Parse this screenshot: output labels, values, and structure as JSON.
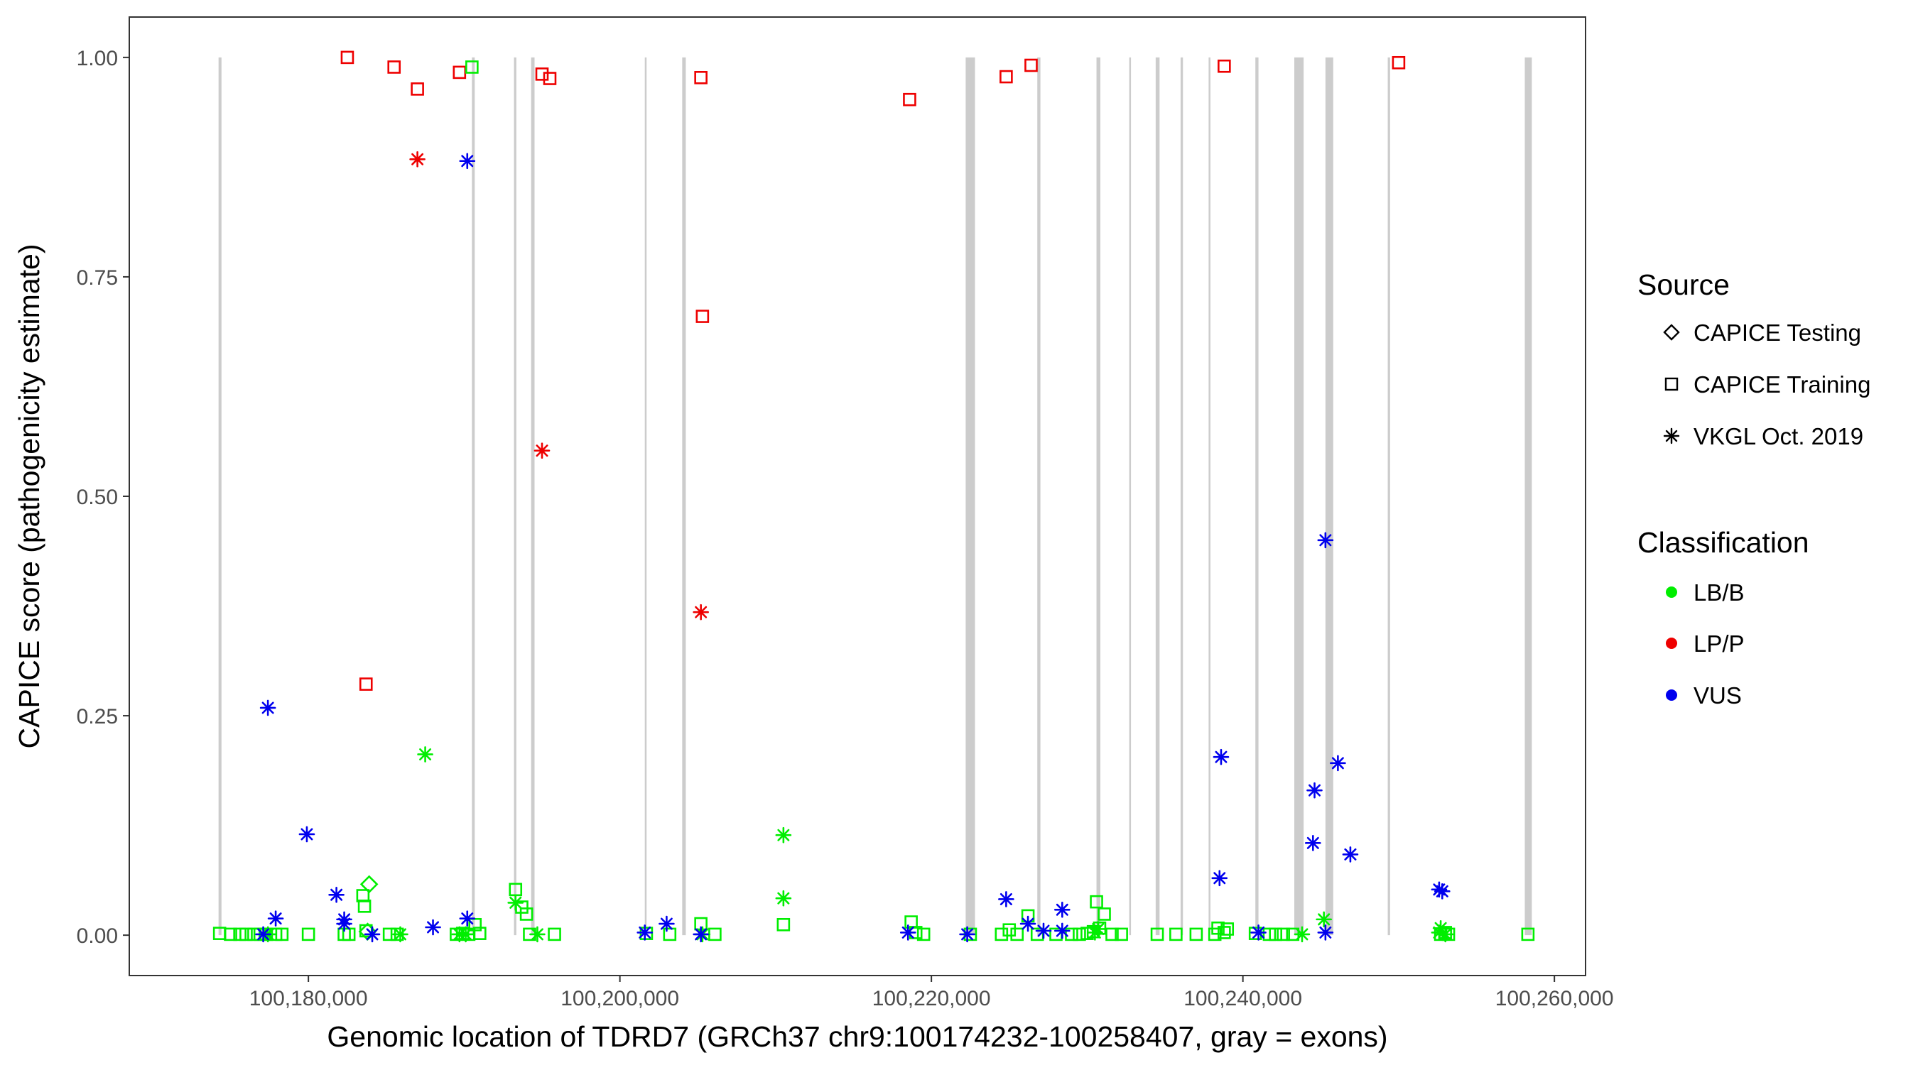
{
  "chart_data": {
    "type": "scatter",
    "xlabel": "Genomic location of TDRD7 (GRCh37 chr9:100174232-100258407, gray = exons)",
    "ylabel": "CAPICE score (pathogenicity estimate)",
    "xlim": [
      168500,
      262000
    ],
    "ylim": [
      -0.046,
      1.046
    ],
    "x_ticks": [
      180000,
      200000,
      220000,
      240000,
      260000
    ],
    "x_tick_labels": [
      "100,180,000",
      "100,200,000",
      "100,220,000",
      "100,240,000",
      "100,260,000"
    ],
    "y_ticks": [
      0,
      0.25,
      0.5,
      0.75,
      1.0
    ],
    "y_tick_labels": [
      "0.00",
      "0.25",
      "0.50",
      "0.75",
      "1.00"
    ],
    "exons": [
      [
        174232,
        174420
      ],
      [
        190500,
        190680
      ],
      [
        193200,
        193350
      ],
      [
        194300,
        194520
      ],
      [
        201600,
        201700
      ],
      [
        204000,
        204230
      ],
      [
        222200,
        222800
      ],
      [
        226800,
        227000
      ],
      [
        230600,
        230850
      ],
      [
        232700,
        232800
      ],
      [
        234400,
        234650
      ],
      [
        236000,
        236150
      ],
      [
        237800,
        237900
      ],
      [
        240800,
        241000
      ],
      [
        243300,
        243900
      ],
      [
        245300,
        245800
      ],
      [
        249300,
        249450
      ],
      [
        258100,
        258550
      ]
    ],
    "legend": {
      "source_title": "Source",
      "source_entries": [
        "CAPICE Testing",
        "CAPICE Training",
        "VKGL Oct. 2019"
      ],
      "classification_title": "Classification",
      "classification_entries": [
        "LB/B",
        "LP/P",
        "VUS"
      ]
    },
    "colors": {
      "LB/B": "#00ee00",
      "LP/P": "#ee0000",
      "VUS": "#0000ee"
    },
    "series": [
      {
        "source": "CAPICE Training",
        "classification": "LP/P",
        "points": [
          [
            182500,
            1.0
          ],
          [
            185500,
            0.989
          ],
          [
            187000,
            0.964
          ],
          [
            189700,
            0.983
          ],
          [
            195000,
            0.981
          ],
          [
            195500,
            0.976
          ],
          [
            205200,
            0.977
          ],
          [
            205300,
            0.705
          ],
          [
            183700,
            0.286
          ],
          [
            218600,
            0.952
          ],
          [
            224800,
            0.978
          ],
          [
            226400,
            0.991
          ],
          [
            238800,
            0.99
          ],
          [
            250000,
            0.994
          ]
        ]
      },
      {
        "source": "VKGL Oct. 2019",
        "classification": "LP/P",
        "points": [
          [
            187000,
            0.884
          ],
          [
            195000,
            0.552
          ],
          [
            205200,
            0.368
          ]
        ]
      },
      {
        "source": "CAPICE Training",
        "classification": "LB/B",
        "points": [
          [
            174300,
            0.002
          ],
          [
            175000,
            0.001
          ],
          [
            175600,
            0.001
          ],
          [
            176000,
            0.001
          ],
          [
            176500,
            0.001
          ],
          [
            176900,
            0.001
          ],
          [
            177300,
            0.001
          ],
          [
            177900,
            0.001
          ],
          [
            178300,
            0.001
          ],
          [
            180000,
            0.001
          ],
          [
            182300,
            0.001
          ],
          [
            182600,
            0.001
          ],
          [
            183500,
            0.045
          ],
          [
            183600,
            0.033
          ],
          [
            183700,
            0.005
          ],
          [
            185200,
            0.001
          ],
          [
            185700,
            0.001
          ],
          [
            189500,
            0.001
          ],
          [
            189900,
            0.002
          ],
          [
            190300,
            0.001
          ],
          [
            190500,
            0.989
          ],
          [
            190700,
            0.012
          ],
          [
            191000,
            0.002
          ],
          [
            193300,
            0.052
          ],
          [
            193700,
            0.032
          ],
          [
            194000,
            0.024
          ],
          [
            194200,
            0.001
          ],
          [
            195800,
            0.001
          ],
          [
            201700,
            0.002
          ],
          [
            203200,
            0.001
          ],
          [
            205200,
            0.013
          ],
          [
            206100,
            0.001
          ],
          [
            210500,
            0.012
          ],
          [
            218700,
            0.015
          ],
          [
            219000,
            0.003
          ],
          [
            219500,
            0.001
          ],
          [
            222500,
            0.001
          ],
          [
            224500,
            0.001
          ],
          [
            225000,
            0.006
          ],
          [
            225500,
            0.001
          ],
          [
            226200,
            0.022
          ],
          [
            226800,
            0.001
          ],
          [
            228000,
            0.001
          ],
          [
            229000,
            0.001
          ],
          [
            229500,
            0.001
          ],
          [
            230000,
            0.002
          ],
          [
            230400,
            0.004
          ],
          [
            230600,
            0.038
          ],
          [
            230800,
            0.008
          ],
          [
            231100,
            0.024
          ],
          [
            231600,
            0.001
          ],
          [
            232200,
            0.001
          ],
          [
            234500,
            0.001
          ],
          [
            235700,
            0.001
          ],
          [
            237000,
            0.001
          ],
          [
            238200,
            0.001
          ],
          [
            238400,
            0.008
          ],
          [
            238800,
            0.003
          ],
          [
            239000,
            0.007
          ],
          [
            240800,
            0.002
          ],
          [
            241700,
            0.001
          ],
          [
            242100,
            0.001
          ],
          [
            242600,
            0.001
          ],
          [
            243200,
            0.001
          ],
          [
            252700,
            0.001
          ],
          [
            253000,
            0.003
          ],
          [
            253200,
            0.001
          ],
          [
            258300,
            0.001
          ]
        ]
      },
      {
        "source": "CAPICE Testing",
        "classification": "LB/B",
        "points": [
          [
            183900,
            0.058
          ],
          [
            183800,
            0.004
          ]
        ]
      },
      {
        "source": "VKGL Oct. 2019",
        "classification": "LB/B",
        "points": [
          [
            177400,
            0.001
          ],
          [
            185900,
            0.001
          ],
          [
            187500,
            0.206
          ],
          [
            189700,
            0.001
          ],
          [
            190100,
            0.001
          ],
          [
            193300,
            0.037
          ],
          [
            194700,
            0.001
          ],
          [
            205300,
            0.001
          ],
          [
            210500,
            0.114
          ],
          [
            210500,
            0.042
          ],
          [
            230500,
            0.003
          ],
          [
            230700,
            0.007
          ],
          [
            243800,
            0.001
          ],
          [
            245200,
            0.018
          ],
          [
            252600,
            0.003
          ],
          [
            252700,
            0.008
          ],
          [
            253000,
            0.001
          ]
        ]
      },
      {
        "source": "VKGL Oct. 2019",
        "classification": "VUS",
        "points": [
          [
            177400,
            0.259
          ],
          [
            177900,
            0.019
          ],
          [
            177100,
            0.001
          ],
          [
            179900,
            0.115
          ],
          [
            181800,
            0.046
          ],
          [
            182300,
            0.018
          ],
          [
            182300,
            0.013
          ],
          [
            184100,
            0.001
          ],
          [
            188000,
            0.009
          ],
          [
            190200,
            0.882
          ],
          [
            190200,
            0.019
          ],
          [
            201600,
            0.003
          ],
          [
            203000,
            0.013
          ],
          [
            205200,
            0.001
          ],
          [
            218500,
            0.003
          ],
          [
            222300,
            0.001
          ],
          [
            224800,
            0.041
          ],
          [
            226200,
            0.013
          ],
          [
            227200,
            0.005
          ],
          [
            228400,
            0.029
          ],
          [
            228400,
            0.005
          ],
          [
            238600,
            0.203
          ],
          [
            238500,
            0.065
          ],
          [
            241000,
            0.003
          ],
          [
            244600,
            0.165
          ],
          [
            244500,
            0.105
          ],
          [
            245300,
            0.45
          ],
          [
            245300,
            0.003
          ],
          [
            246100,
            0.196
          ],
          [
            246900,
            0.092
          ],
          [
            252600,
            0.052
          ],
          [
            252800,
            0.05
          ]
        ]
      }
    ]
  }
}
